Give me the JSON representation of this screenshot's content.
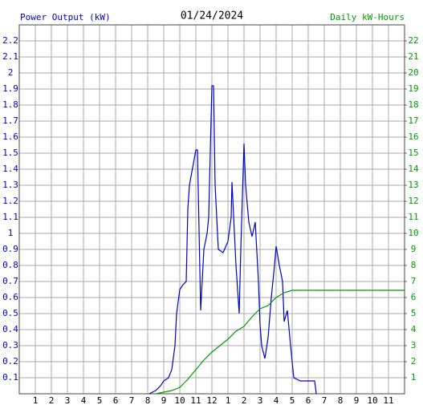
{
  "chart_data": {
    "type": "line",
    "title": "01/24/2024",
    "ylabel": "Power Output (kW)",
    "y2label": "Daily kW-Hours",
    "xlim": [
      0,
      24
    ],
    "xticks": [
      1,
      2,
      3,
      4,
      5,
      6,
      7,
      8,
      9,
      10,
      11,
      12,
      {
        "value": 13,
        "label": "1"
      },
      {
        "value": 14,
        "label": "2"
      },
      {
        "value": 15,
        "label": "3"
      },
      {
        "value": 16,
        "label": "4"
      },
      {
        "value": 17,
        "label": "5"
      },
      {
        "value": 18,
        "label": "6"
      },
      {
        "value": 19,
        "label": "7"
      },
      {
        "value": 20,
        "label": "8"
      },
      {
        "value": 21,
        "label": "9"
      },
      {
        "value": 22,
        "label": "10"
      },
      {
        "value": 23,
        "label": "11"
      }
    ],
    "ylim": [
      0,
      2.3
    ],
    "yticks": [
      0.1,
      0.2,
      0.3,
      0.4,
      0.5,
      0.6,
      0.7,
      0.8,
      0.9,
      1.0,
      1.1,
      1.2,
      1.3,
      1.4,
      1.5,
      1.6,
      1.7,
      1.8,
      1.9,
      2.0,
      2.1,
      2.2
    ],
    "y2lim": [
      0,
      23
    ],
    "y2ticks": [
      1,
      2,
      3,
      4,
      5,
      6,
      7,
      8,
      9,
      10,
      11,
      12,
      13,
      14,
      15,
      16,
      17,
      18,
      19,
      20,
      21,
      22
    ],
    "grid": true,
    "series": [
      {
        "name": "Power Output (kW)",
        "color": "#0000cc",
        "x": [
          8.1,
          8.5,
          8.8,
          9.0,
          9.3,
          9.5,
          9.7,
          9.8,
          10.0,
          10.2,
          10.4,
          10.5,
          10.6,
          11.0,
          11.1,
          11.3,
          11.5,
          11.7,
          11.8,
          12.0,
          12.1,
          12.2,
          12.4,
          12.7,
          13.0,
          13.2,
          13.25,
          13.5,
          13.7,
          13.8,
          14.0,
          14.1,
          14.3,
          14.5,
          14.7,
          14.9,
          15.0,
          15.1,
          15.3,
          15.5,
          15.7,
          15.9,
          16.0,
          16.2,
          16.4,
          16.5,
          16.7,
          16.9,
          17.0,
          17.1,
          17.5,
          18.4,
          18.5
        ],
        "values": [
          0,
          0.02,
          0.05,
          0.08,
          0.1,
          0.15,
          0.3,
          0.5,
          0.65,
          0.68,
          0.7,
          1.15,
          1.3,
          1.52,
          1.52,
          0.52,
          0.9,
          1.0,
          1.1,
          1.92,
          1.92,
          1.3,
          0.9,
          0.88,
          0.95,
          1.1,
          1.32,
          0.8,
          0.5,
          0.9,
          1.56,
          1.3,
          1.07,
          0.98,
          1.07,
          0.7,
          0.43,
          0.3,
          0.22,
          0.35,
          0.6,
          0.8,
          0.92,
          0.8,
          0.7,
          0.45,
          0.52,
          0.3,
          0.2,
          0.1,
          0.08,
          0.08,
          0
        ]
      },
      {
        "name": "Daily kW-Hours",
        "color": "#009900",
        "axis": "y2",
        "x": [
          8.5,
          9.0,
          9.5,
          10.0,
          10.5,
          11.0,
          11.5,
          12.0,
          12.5,
          13.0,
          13.5,
          14.0,
          14.5,
          15.0,
          15.5,
          16.0,
          16.5,
          17.0,
          24.0
        ],
        "values": [
          0,
          0.1,
          0.2,
          0.4,
          0.9,
          1.5,
          2.1,
          2.6,
          3.0,
          3.4,
          3.9,
          4.2,
          4.8,
          5.3,
          5.5,
          6.0,
          6.3,
          6.45,
          6.45
        ]
      }
    ]
  }
}
